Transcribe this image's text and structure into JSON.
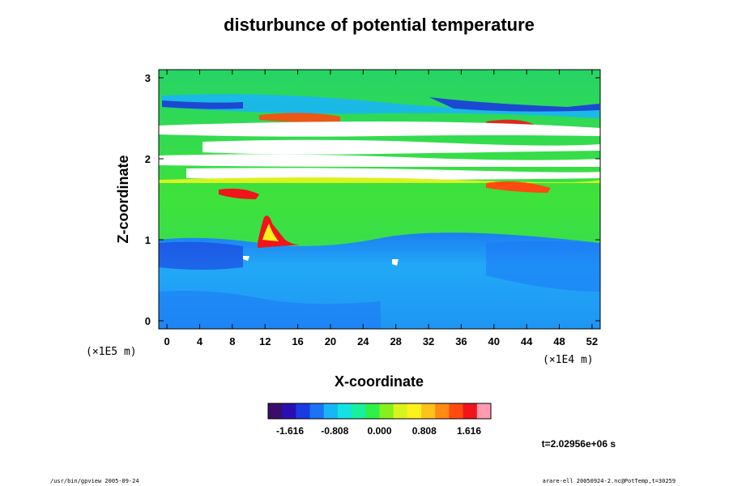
{
  "chart_data": {
    "type": "heatmap",
    "title": "disturbunce of potential temperature",
    "xlabel": "X-coordinate",
    "ylabel": "Z-coordinate",
    "x_unit": "(×1E4 m)",
    "z_unit": "(×1E5 m)",
    "x_ticks": [
      "0",
      "4",
      "8",
      "12",
      "16",
      "20",
      "24",
      "28",
      "32",
      "36",
      "40",
      "44",
      "48",
      "52"
    ],
    "z_ticks": [
      "0",
      "1",
      "2",
      "3"
    ],
    "xlim": [
      -1,
      53
    ],
    "zlim": [
      -0.1,
      3.1
    ],
    "colorbar": {
      "labels": [
        "-1.616",
        "-0.808",
        "0.000",
        "0.808",
        "1.616"
      ],
      "colors": [
        "#3a0d6b",
        "#2a0fb0",
        "#1b3ae0",
        "#1c73f5",
        "#19b6f5",
        "#13e3e0",
        "#18f0a0",
        "#2ef048",
        "#86f01c",
        "#d8f41e",
        "#fff21c",
        "#ffc21a",
        "#ff8a14",
        "#ff4a10",
        "#f0151a",
        "#ff9ab0"
      ]
    },
    "regions": {
      "lower_field": "#1f9cff",
      "green_band": "#2edc55",
      "white_gap": "#ffffff"
    },
    "time_label": "t=2.02956e+06 s",
    "footer_left": "/usr/bin/gpview 2005-09-24",
    "footer_right": "arare-ell 20050924-2.nc@PotTemp,t=30259"
  }
}
